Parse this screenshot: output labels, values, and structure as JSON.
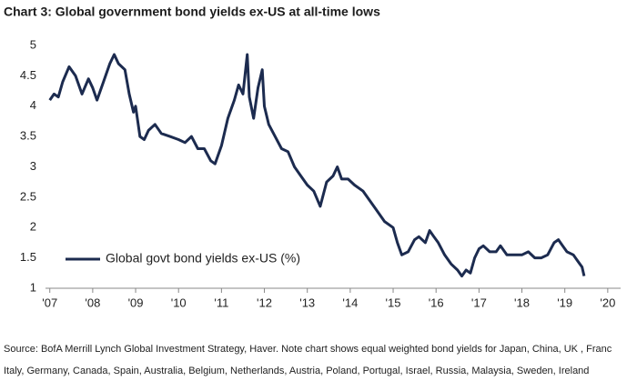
{
  "chart_data": {
    "type": "line",
    "title": "Chart 3: Global government bond yields ex-US at all-time lows",
    "source": [
      "Source: BofA Merrill Lynch Global Investment Strategy, Haver. Note chart shows equal weighted bond yields for Japan, China, UK , Franc",
      "Italy, Germany, Canada, Spain, Australia, Belgium, Netherlands, Austria, Poland, Portugal, Israel, Russia, Malaysia, Sweden, Ireland"
    ],
    "legend": "lower left",
    "x": [
      2007.0,
      2007.1,
      2007.2,
      2007.3,
      2007.45,
      2007.6,
      2007.75,
      2007.9,
      2008.0,
      2008.1,
      2008.25,
      2008.4,
      2008.5,
      2008.6,
      2008.75,
      2008.85,
      2008.95,
      2009.0,
      2009.1,
      2009.2,
      2009.3,
      2009.45,
      2009.6,
      2009.8,
      2010.0,
      2010.15,
      2010.3,
      2010.45,
      2010.6,
      2010.75,
      2010.85,
      2011.0,
      2011.15,
      2011.3,
      2011.4,
      2011.5,
      2011.6,
      2011.65,
      2011.75,
      2011.85,
      2011.95,
      2012.0,
      2012.1,
      2012.25,
      2012.4,
      2012.55,
      2012.7,
      2012.85,
      2013.0,
      2013.15,
      2013.3,
      2013.45,
      2013.6,
      2013.7,
      2013.8,
      2013.95,
      2014.1,
      2014.3,
      2014.45,
      2014.6,
      2014.8,
      2015.0,
      2015.1,
      2015.2,
      2015.35,
      2015.5,
      2015.6,
      2015.75,
      2015.85,
      2015.95,
      2016.05,
      2016.2,
      2016.35,
      2016.5,
      2016.6,
      2016.7,
      2016.8,
      2016.9,
      2017.0,
      2017.1,
      2017.25,
      2017.4,
      2017.5,
      2017.65,
      2017.8,
      2018.0,
      2018.15,
      2018.3,
      2018.45,
      2018.6,
      2018.75,
      2018.85,
      2018.95,
      2019.05,
      2019.2,
      2019.3,
      2019.4,
      2019.45
    ],
    "series": [
      {
        "name": "Global govt bond yields ex-US (%)",
        "color": "#1c2b4f",
        "values": [
          4.1,
          4.2,
          4.15,
          4.4,
          4.65,
          4.5,
          4.2,
          4.45,
          4.3,
          4.1,
          4.4,
          4.7,
          4.85,
          4.7,
          4.6,
          4.2,
          3.9,
          4.0,
          3.5,
          3.45,
          3.6,
          3.7,
          3.55,
          3.5,
          3.45,
          3.4,
          3.5,
          3.3,
          3.3,
          3.1,
          3.05,
          3.35,
          3.8,
          4.1,
          4.35,
          4.2,
          4.85,
          4.15,
          3.8,
          4.3,
          4.6,
          4.0,
          3.7,
          3.5,
          3.3,
          3.25,
          3.0,
          2.85,
          2.7,
          2.6,
          2.35,
          2.75,
          2.85,
          3.0,
          2.8,
          2.8,
          2.7,
          2.6,
          2.45,
          2.3,
          2.1,
          2.0,
          1.75,
          1.55,
          1.6,
          1.8,
          1.85,
          1.75,
          1.95,
          1.85,
          1.75,
          1.55,
          1.4,
          1.3,
          1.2,
          1.3,
          1.25,
          1.5,
          1.65,
          1.7,
          1.6,
          1.6,
          1.7,
          1.55,
          1.55,
          1.55,
          1.6,
          1.5,
          1.5,
          1.55,
          1.75,
          1.8,
          1.7,
          1.6,
          1.55,
          1.45,
          1.35,
          1.2
        ]
      }
    ],
    "xlim": [
      2006.9,
      2020.3
    ],
    "xticks": [
      {
        "value": 2007,
        "label": "'07"
      },
      {
        "value": 2008,
        "label": "'08"
      },
      {
        "value": 2009,
        "label": "'09"
      },
      {
        "value": 2010,
        "label": "'10"
      },
      {
        "value": 2011,
        "label": "'11"
      },
      {
        "value": 2012,
        "label": "'12"
      },
      {
        "value": 2013,
        "label": "'13"
      },
      {
        "value": 2014,
        "label": "'14"
      },
      {
        "value": 2015,
        "label": "'15"
      },
      {
        "value": 2016,
        "label": "'16"
      },
      {
        "value": 2017,
        "label": "'17"
      },
      {
        "value": 2018,
        "label": "'18"
      },
      {
        "value": 2019,
        "label": "'19"
      },
      {
        "value": 2020,
        "label": "'20"
      }
    ],
    "ylim": [
      1,
      5
    ],
    "yticks": [
      1,
      1.5,
      2,
      2.5,
      3,
      3.5,
      4,
      4.5,
      5
    ],
    "grid": false
  }
}
